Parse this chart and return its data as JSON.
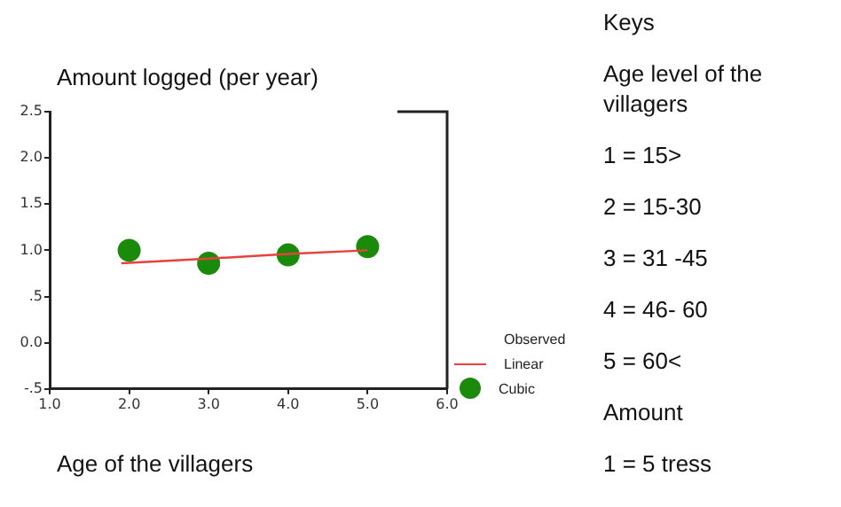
{
  "chart_data": {
    "type": "scatter",
    "title": "Amount logged (per year)",
    "xlabel": "Age of the villagers",
    "legend_title": "Observed",
    "legend": "right",
    "xlim": [
      1,
      6
    ],
    "xticks": [
      {
        "value": 1,
        "label": "1.0"
      },
      {
        "value": 2,
        "label": "2.0"
      },
      {
        "value": 3,
        "label": "3.0"
      },
      {
        "value": 4,
        "label": "4.0"
      },
      {
        "value": 5,
        "label": "5.0"
      },
      {
        "value": 6,
        "label": "6.0"
      }
    ],
    "ylim": [
      -0.5,
      2.5
    ],
    "yticks": [
      {
        "value": -0.5,
        "label": "-.5"
      },
      {
        "value": 0,
        "label": "0.0"
      },
      {
        "value": 0.5,
        "label": ".5"
      },
      {
        "value": 1,
        "label": "1.0"
      },
      {
        "value": 1.5,
        "label": "1.5"
      },
      {
        "value": 2,
        "label": "2.0"
      },
      {
        "value": 2.5,
        "label": "2.5"
      }
    ],
    "grid": false,
    "series": [
      {
        "name": "Linear",
        "type": "line",
        "color": "#e8413c",
        "marker": "none",
        "line_style": "solid",
        "x": [
          1.9,
          3,
          4,
          5
        ],
        "values": [
          0.86,
          0.91,
          0.96,
          1.0
        ]
      },
      {
        "name": "Cubic",
        "type": "scatter",
        "color": "#1a8a0a",
        "marker": "circle",
        "x": [
          2,
          3,
          4,
          5
        ],
        "values": [
          1.0,
          0.86,
          0.95,
          1.04
        ]
      }
    ],
    "annotations": [
      "Keys",
      "Age level of the villagers",
      "1 = 15>",
      "2 = 15-30",
      "3 = 31 -45",
      "4 = 46- 60",
      "5 = 60<",
      "Amount",
      "1 = 5 tress"
    ]
  }
}
